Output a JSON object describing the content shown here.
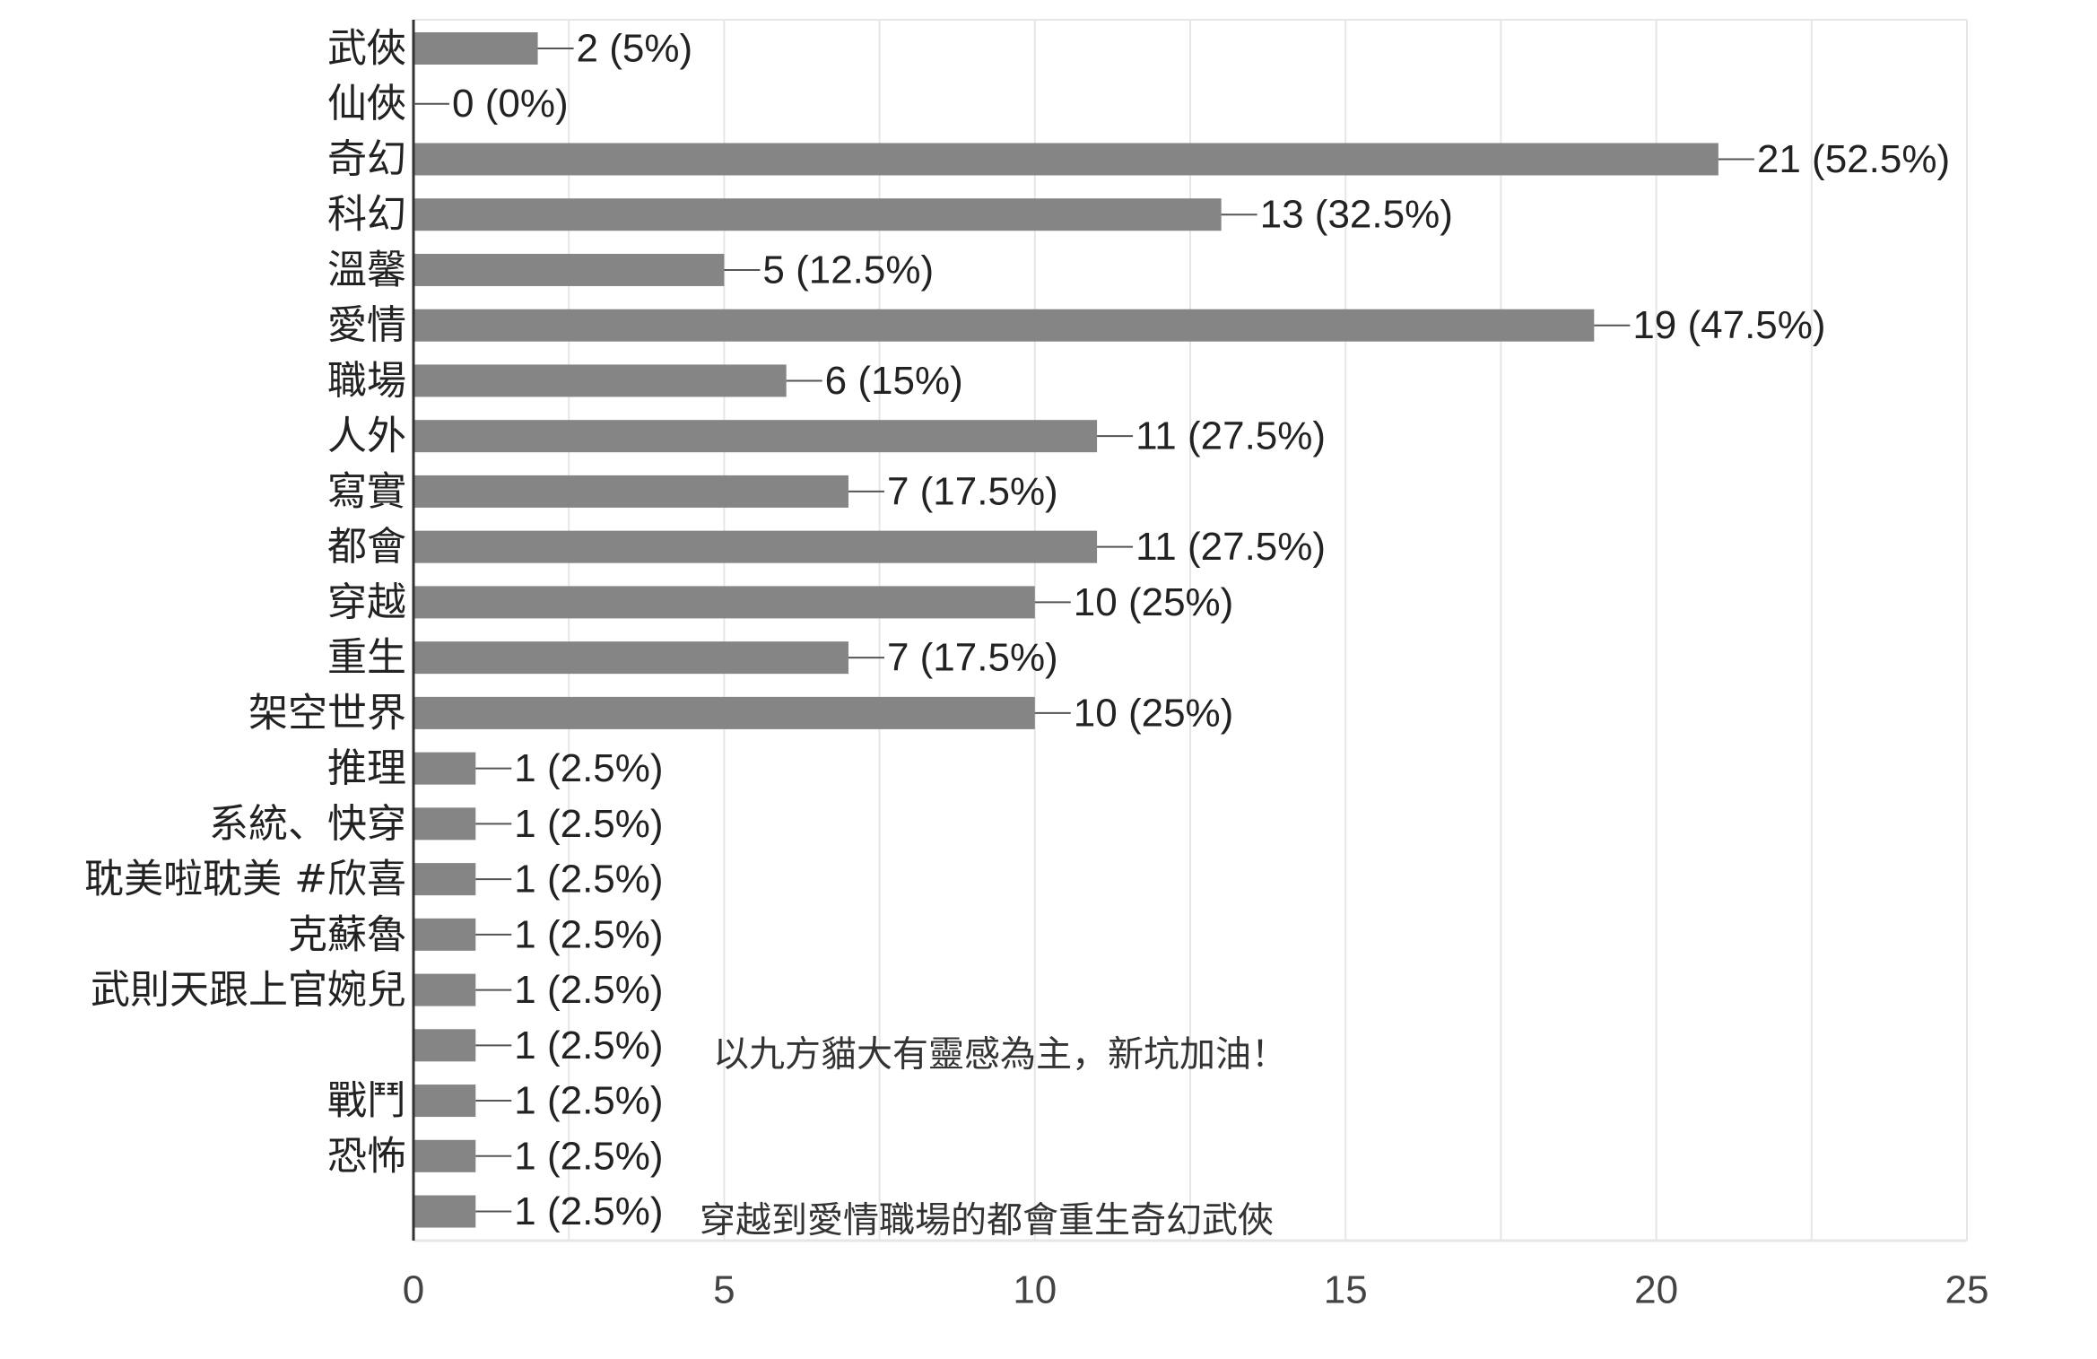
{
  "chart_data": {
    "type": "bar",
    "orientation": "horizontal",
    "categories": [
      "武俠",
      "仙俠",
      "奇幻",
      "科幻",
      "溫馨",
      "愛情",
      "職場",
      "人外",
      "寫實",
      "都會",
      "穿越",
      "重生",
      "架空世界",
      "推理",
      "系統、快穿",
      "耽美啦耽美 #欣喜",
      "克蘇魯",
      "武則天跟上官婉兒",
      "",
      "戰鬥",
      "恐怖",
      ""
    ],
    "values": [
      2,
      0,
      21,
      13,
      5,
      19,
      6,
      11,
      7,
      11,
      10,
      7,
      10,
      1,
      1,
      1,
      1,
      1,
      1,
      1,
      1,
      1
    ],
    "data_labels": [
      "2 (5%)",
      "0 (0%)",
      "21 (52.5%)",
      "13 (32.5%)",
      "5 (12.5%)",
      "19 (47.5%)",
      "6 (15%)",
      "11 (27.5%)",
      "7 (17.5%)",
      "11 (27.5%)",
      "10 (25%)",
      "7 (17.5%)",
      "10 (25%)",
      "1 (2.5%)",
      "1 (2.5%)",
      "1 (2.5%)",
      "1 (2.5%)",
      "1 (2.5%)",
      "1 (2.5%)",
      "1 (2.5%)",
      "1 (2.5%)",
      "1 (2.5%)"
    ],
    "annotations": [
      {
        "row": 18,
        "text": "以九方貓大有靈感為主，新坑加油！"
      },
      {
        "row": 21,
        "text": "穿越到愛情職場的都會重生奇幻武俠"
      }
    ],
    "xlim": [
      0,
      25
    ],
    "xticks": [
      0,
      5,
      10,
      15,
      20,
      25
    ],
    "grid": true,
    "colors": {
      "bar": "#858585",
      "grid": "#e6e6e6",
      "axis": "#333333"
    }
  }
}
